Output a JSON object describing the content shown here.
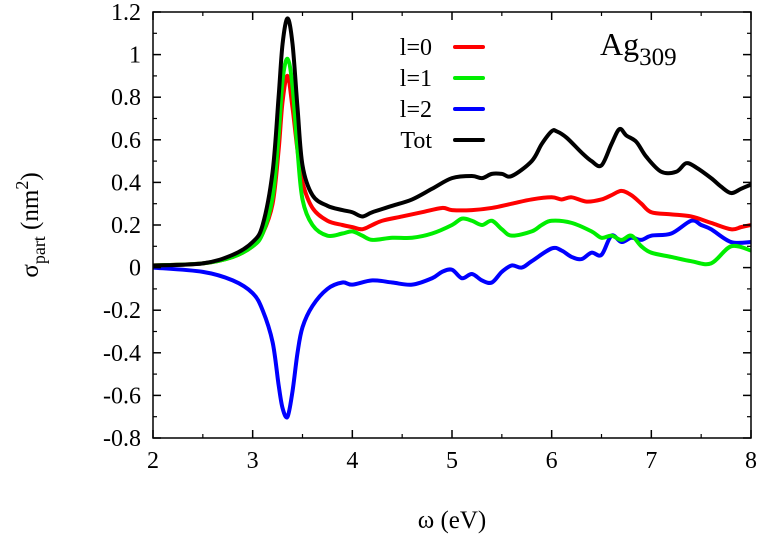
{
  "chart_data": {
    "type": "line",
    "annotation": "Ag309",
    "annotation_main": "Ag",
    "annotation_sub": "309",
    "xlabel": "ω (eV)",
    "ylabel_main": "σ",
    "ylabel_sub": "part",
    "ylabel_unit_open": " (nm",
    "ylabel_unit_sup": "2",
    "ylabel_unit_close": ")",
    "xlim": [
      2,
      8
    ],
    "ylim": [
      -0.8,
      1.2
    ],
    "xticks": [
      "2",
      "3",
      "4",
      "5",
      "6",
      "7",
      "8"
    ],
    "yticks": [
      "-0.8",
      "-0.6",
      "-0.4",
      "-0.2",
      "0",
      "0.2",
      "0.4",
      "0.6",
      "0.8",
      "1",
      "1.2"
    ],
    "legend_position": "top-right",
    "grid": false,
    "series": [
      {
        "name": "l=0",
        "color": "#ff0000",
        "x": [
          2.0,
          2.5,
          2.8,
          3.0,
          3.1,
          3.2,
          3.26,
          3.3,
          3.35,
          3.4,
          3.45,
          3.5,
          3.6,
          3.75,
          3.9,
          4.0,
          4.1,
          4.2,
          4.3,
          4.5,
          4.7,
          4.9,
          5.0,
          5.2,
          5.4,
          5.6,
          5.8,
          6.0,
          6.1,
          6.2,
          6.35,
          6.5,
          6.6,
          6.7,
          6.8,
          6.9,
          7.0,
          7.2,
          7.4,
          7.6,
          7.8,
          7.9,
          8.0
        ],
        "y": [
          0.01,
          0.02,
          0.05,
          0.1,
          0.16,
          0.3,
          0.55,
          0.78,
          0.9,
          0.75,
          0.55,
          0.4,
          0.28,
          0.22,
          0.2,
          0.19,
          0.18,
          0.2,
          0.22,
          0.24,
          0.26,
          0.28,
          0.27,
          0.27,
          0.28,
          0.3,
          0.32,
          0.33,
          0.32,
          0.33,
          0.31,
          0.32,
          0.34,
          0.36,
          0.34,
          0.3,
          0.26,
          0.25,
          0.24,
          0.21,
          0.18,
          0.19,
          0.2
        ]
      },
      {
        "name": "l=1",
        "color": "#00ee00",
        "x": [
          2.0,
          2.5,
          2.8,
          3.0,
          3.1,
          3.2,
          3.26,
          3.3,
          3.35,
          3.4,
          3.45,
          3.5,
          3.6,
          3.75,
          3.9,
          4.0,
          4.1,
          4.2,
          4.4,
          4.6,
          4.8,
          5.0,
          5.1,
          5.2,
          5.3,
          5.4,
          5.5,
          5.6,
          5.8,
          5.9,
          6.0,
          6.2,
          6.4,
          6.5,
          6.6,
          6.7,
          6.8,
          6.9,
          7.0,
          7.2,
          7.4,
          7.6,
          7.8,
          8.0
        ],
        "y": [
          0.01,
          0.02,
          0.05,
          0.1,
          0.16,
          0.33,
          0.62,
          0.88,
          0.98,
          0.85,
          0.55,
          0.32,
          0.2,
          0.15,
          0.16,
          0.17,
          0.15,
          0.13,
          0.14,
          0.14,
          0.16,
          0.2,
          0.23,
          0.22,
          0.2,
          0.22,
          0.18,
          0.15,
          0.17,
          0.2,
          0.22,
          0.21,
          0.17,
          0.14,
          0.15,
          0.13,
          0.15,
          0.1,
          0.07,
          0.05,
          0.03,
          0.02,
          0.1,
          0.08
        ]
      },
      {
        "name": "l=2",
        "color": "#0000ff",
        "x": [
          2.0,
          2.5,
          2.8,
          3.0,
          3.1,
          3.2,
          3.26,
          3.3,
          3.35,
          3.4,
          3.45,
          3.5,
          3.6,
          3.75,
          3.9,
          4.0,
          4.2,
          4.4,
          4.6,
          4.8,
          4.9,
          5.0,
          5.1,
          5.2,
          5.3,
          5.4,
          5.5,
          5.6,
          5.7,
          5.8,
          6.0,
          6.1,
          6.2,
          6.3,
          6.4,
          6.5,
          6.6,
          6.7,
          6.8,
          6.9,
          7.0,
          7.2,
          7.4,
          7.5,
          7.6,
          7.8,
          8.0
        ],
        "y": [
          0.0,
          -0.02,
          -0.06,
          -0.12,
          -0.2,
          -0.35,
          -0.55,
          -0.66,
          -0.7,
          -0.58,
          -0.4,
          -0.28,
          -0.18,
          -0.1,
          -0.07,
          -0.08,
          -0.06,
          -0.07,
          -0.08,
          -0.05,
          -0.02,
          -0.01,
          -0.05,
          -0.03,
          -0.06,
          -0.07,
          -0.02,
          0.01,
          0.0,
          0.03,
          0.09,
          0.08,
          0.05,
          0.04,
          0.07,
          0.06,
          0.15,
          0.12,
          0.14,
          0.13,
          0.15,
          0.16,
          0.22,
          0.2,
          0.18,
          0.12,
          0.12
        ]
      },
      {
        "name": "Tot",
        "color": "#000000",
        "x": [
          2.0,
          2.5,
          2.8,
          3.0,
          3.1,
          3.2,
          3.26,
          3.3,
          3.35,
          3.4,
          3.45,
          3.5,
          3.6,
          3.75,
          3.9,
          4.0,
          4.1,
          4.2,
          4.4,
          4.6,
          4.8,
          5.0,
          5.2,
          5.3,
          5.4,
          5.5,
          5.6,
          5.8,
          5.9,
          6.0,
          6.05,
          6.15,
          6.3,
          6.4,
          6.5,
          6.6,
          6.68,
          6.75,
          6.85,
          6.95,
          7.1,
          7.25,
          7.35,
          7.45,
          7.6,
          7.7,
          7.8,
          7.9,
          8.0
        ],
        "y": [
          0.01,
          0.02,
          0.06,
          0.12,
          0.2,
          0.45,
          0.8,
          1.05,
          1.17,
          1.05,
          0.75,
          0.48,
          0.34,
          0.29,
          0.27,
          0.26,
          0.24,
          0.26,
          0.29,
          0.32,
          0.37,
          0.42,
          0.43,
          0.42,
          0.44,
          0.44,
          0.43,
          0.5,
          0.58,
          0.64,
          0.64,
          0.61,
          0.54,
          0.5,
          0.48,
          0.58,
          0.65,
          0.62,
          0.59,
          0.52,
          0.45,
          0.45,
          0.49,
          0.47,
          0.42,
          0.38,
          0.35,
          0.37,
          0.39
        ]
      }
    ]
  }
}
